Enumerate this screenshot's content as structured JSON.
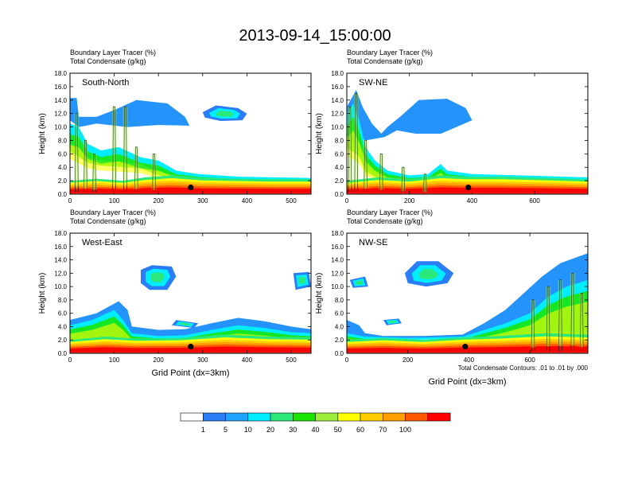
{
  "title": "2013-09-14_15:00:00",
  "chart_data": [
    {
      "type": "heatmap",
      "subtitle1": "Boundary Layer Tracer   (%)",
      "subtitle2": "Total Condensate   (g/kg)",
      "label": "South-North",
      "ylabel": "Height (km)",
      "xlabel": "",
      "xlim": [
        0,
        545
      ],
      "ylim": [
        0,
        18
      ],
      "xticks": [
        0,
        100,
        200,
        300,
        400,
        500
      ],
      "yticks": [
        "0.0",
        "2.0",
        "4.0",
        "6.0",
        "8.0",
        "10.0",
        "12.0",
        "14.0",
        "16.0",
        "18.0"
      ],
      "marker": {
        "x": 273,
        "y": 1.0
      },
      "features": {
        "pbl": [
          [
            0,
            2.0
          ],
          [
            60,
            2.3
          ],
          [
            120,
            2.0
          ],
          [
            170,
            2.5
          ],
          [
            230,
            2.8
          ],
          [
            300,
            2.4
          ],
          [
            380,
            2.3
          ],
          [
            460,
            2.2
          ],
          [
            545,
            2.2
          ]
        ],
        "anvil": [
          [
            0,
            14.3
          ],
          [
            15,
            14.3
          ],
          [
            20,
            11.5
          ],
          [
            60,
            11.5
          ],
          [
            100,
            12.5
          ],
          [
            150,
            14.0
          ],
          [
            220,
            13.5
          ],
          [
            260,
            11.5
          ],
          [
            270,
            10.2
          ],
          [
            200,
            10.3
          ],
          [
            130,
            10.0
          ],
          [
            60,
            10.5
          ],
          [
            20,
            10.0
          ],
          [
            0,
            11.0
          ]
        ],
        "thick": [
          [
            0,
            10.5
          ],
          [
            20,
            10.0
          ],
          [
            40,
            7.5
          ],
          [
            70,
            6.5
          ],
          [
            110,
            7.0
          ],
          [
            160,
            5.5
          ],
          [
            200,
            5.0
          ],
          [
            240,
            3.5
          ],
          [
            290,
            3.0
          ],
          [
            380,
            2.6
          ],
          [
            545,
            2.4
          ],
          [
            545,
            2.0
          ],
          [
            380,
            2.2
          ],
          [
            290,
            2.4
          ],
          [
            240,
            2.8
          ],
          [
            200,
            3.3
          ],
          [
            160,
            4.5
          ],
          [
            110,
            4.8
          ],
          [
            70,
            5.0
          ],
          [
            40,
            5.5
          ],
          [
            20,
            6.5
          ],
          [
            0,
            7.5
          ]
        ],
        "patches": [
          [
            [
              300,
              12.2
            ],
            [
              330,
              13.2
            ],
            [
              380,
              12.8
            ],
            [
              400,
              12.0
            ],
            [
              390,
              11.0
            ],
            [
              340,
              10.9
            ],
            [
              305,
              11.4
            ]
          ]
        ],
        "towers": [
          [
            15,
            12
          ],
          [
            35,
            8
          ],
          [
            55,
            6
          ],
          [
            100,
            13
          ],
          [
            125,
            13
          ],
          [
            150,
            7
          ],
          [
            190,
            6
          ]
        ]
      }
    },
    {
      "type": "heatmap",
      "subtitle1": "Boundary Layer Tracer   (%)",
      "subtitle2": "Total Condensate   (g/kg)",
      "label": "SW-NE",
      "ylabel": "Height (km)",
      "xlabel": "",
      "xlim": [
        0,
        770
      ],
      "ylim": [
        0,
        18
      ],
      "xticks": [
        0,
        200,
        400,
        600
      ],
      "yticks": [
        "0.0",
        "2.0",
        "4.0",
        "6.0",
        "8.0",
        "10.0",
        "12.0",
        "14.0",
        "16.0",
        "18.0"
      ],
      "marker": {
        "x": 388,
        "y": 1.0
      },
      "features": {
        "pbl": [
          [
            0,
            2.0
          ],
          [
            100,
            2.5
          ],
          [
            200,
            2.2
          ],
          [
            300,
            2.8
          ],
          [
            380,
            2.6
          ],
          [
            500,
            2.6
          ],
          [
            650,
            2.4
          ],
          [
            770,
            2.2
          ]
        ],
        "anvil": [
          [
            0,
            13.0
          ],
          [
            30,
            15.5
          ],
          [
            50,
            13.0
          ],
          [
            80,
            10.5
          ],
          [
            110,
            9.0
          ],
          [
            130,
            10.0
          ],
          [
            170,
            11.5
          ],
          [
            230,
            14.0
          ],
          [
            320,
            14.2
          ],
          [
            380,
            12.8
          ],
          [
            400,
            11.0
          ],
          [
            300,
            9.0
          ],
          [
            220,
            9.0
          ],
          [
            160,
            9.5
          ],
          [
            120,
            8.5
          ],
          [
            60,
            8.0
          ],
          [
            20,
            9.0
          ],
          [
            0,
            10.0
          ]
        ],
        "thick": [
          [
            0,
            12.0
          ],
          [
            20,
            13.5
          ],
          [
            40,
            11.0
          ],
          [
            60,
            7.0
          ],
          [
            90,
            5.0
          ],
          [
            130,
            3.5
          ],
          [
            200,
            2.8
          ],
          [
            260,
            3.0
          ],
          [
            300,
            4.5
          ],
          [
            320,
            3.5
          ],
          [
            400,
            3.0
          ],
          [
            550,
            2.8
          ],
          [
            770,
            2.5
          ],
          [
            770,
            2.0
          ],
          [
            550,
            2.2
          ],
          [
            400,
            2.4
          ],
          [
            320,
            2.6
          ],
          [
            300,
            2.8
          ],
          [
            260,
            2.4
          ],
          [
            200,
            2.3
          ],
          [
            130,
            2.5
          ],
          [
            90,
            3.0
          ],
          [
            60,
            4.0
          ],
          [
            40,
            6.5
          ],
          [
            20,
            7.5
          ],
          [
            0,
            8.0
          ]
        ],
        "patches": [],
        "towers": [
          [
            10,
            13
          ],
          [
            30,
            15
          ],
          [
            60,
            8
          ],
          [
            110,
            6
          ],
          [
            180,
            4
          ],
          [
            250,
            3
          ]
        ]
      }
    },
    {
      "type": "heatmap",
      "subtitle1": "Boundary Layer Tracer   (%)",
      "subtitle2": "Total Condensate   (g/kg)",
      "label": "West-East",
      "ylabel": "Height (km)",
      "xlabel": "Grid Point (dx=3km)",
      "xlim": [
        0,
        545
      ],
      "ylim": [
        0,
        18
      ],
      "xticks": [
        0,
        100,
        200,
        300,
        400,
        500
      ],
      "yticks": [
        "0.0",
        "2.0",
        "4.0",
        "6.0",
        "8.0",
        "10.0",
        "12.0",
        "14.0",
        "16.0",
        "18.0"
      ],
      "marker": {
        "x": 273,
        "y": 1.0
      },
      "features": {
        "pbl": [
          [
            0,
            2.0
          ],
          [
            80,
            2.5
          ],
          [
            150,
            2.2
          ],
          [
            250,
            2.3
          ],
          [
            350,
            2.8
          ],
          [
            450,
            2.5
          ],
          [
            545,
            2.4
          ]
        ],
        "anvil": [
          [
            0,
            5.0
          ],
          [
            60,
            6.0
          ],
          [
            110,
            7.8
          ],
          [
            130,
            6.5
          ],
          [
            140,
            4.0
          ],
          [
            200,
            3.5
          ],
          [
            260,
            3.6
          ],
          [
            320,
            4.5
          ],
          [
            380,
            5.3
          ],
          [
            440,
            4.8
          ],
          [
            500,
            4.0
          ],
          [
            545,
            3.6
          ],
          [
            545,
            2.6
          ],
          [
            450,
            2.8
          ],
          [
            350,
            3.0
          ],
          [
            250,
            2.6
          ],
          [
            150,
            2.5
          ],
          [
            80,
            2.8
          ],
          [
            0,
            2.4
          ]
        ],
        "thick": [
          [
            0,
            4.2
          ],
          [
            50,
            5.0
          ],
          [
            100,
            6.5
          ],
          [
            120,
            5.0
          ],
          [
            140,
            3.0
          ],
          [
            200,
            2.6
          ],
          [
            260,
            2.7
          ],
          [
            320,
            3.5
          ],
          [
            380,
            4.2
          ],
          [
            440,
            3.8
          ],
          [
            500,
            3.2
          ],
          [
            545,
            3.0
          ],
          [
            545,
            2.2
          ],
          [
            450,
            2.4
          ],
          [
            350,
            2.6
          ],
          [
            250,
            2.2
          ],
          [
            150,
            2.2
          ],
          [
            80,
            2.4
          ],
          [
            0,
            2.0
          ]
        ],
        "patches": [
          [
            [
              160,
              12.5
            ],
            [
              185,
              13.2
            ],
            [
              230,
              13.0
            ],
            [
              240,
              11.5
            ],
            [
              220,
              9.5
            ],
            [
              180,
              9.5
            ],
            [
              160,
              10.5
            ]
          ],
          [
            [
              240,
              5.0
            ],
            [
              290,
              4.5
            ],
            [
              280,
              3.8
            ],
            [
              230,
              4.2
            ]
          ],
          [
            [
              505,
              12.0
            ],
            [
              540,
              12.2
            ],
            [
              545,
              10.0
            ],
            [
              510,
              9.5
            ]
          ]
        ],
        "towers": []
      }
    },
    {
      "type": "heatmap",
      "subtitle1": "Boundary Layer Tracer   (%)",
      "subtitle2": "Total Condensate   (g/kg)",
      "label": "NW-SE",
      "ylabel": "Height (km)",
      "xlabel": "Grid Point (dx=3km)",
      "note": "Total Condensate Contours: .01 to .01 by .000",
      "xlim": [
        0,
        790
      ],
      "ylim": [
        0,
        18
      ],
      "xticks": [
        0,
        200,
        400,
        600
      ],
      "yticks": [
        "0.0",
        "2.0",
        "4.0",
        "6.0",
        "8.0",
        "10.0",
        "12.0",
        "14.0",
        "16.0",
        "18.0"
      ],
      "marker": {
        "x": 388,
        "y": 1.0
      },
      "features": {
        "pbl": [
          [
            0,
            2.0
          ],
          [
            120,
            2.3
          ],
          [
            250,
            2.0
          ],
          [
            380,
            2.4
          ],
          [
            500,
            2.6
          ],
          [
            650,
            3.0
          ],
          [
            790,
            2.8
          ]
        ],
        "anvil": [
          [
            0,
            5.0
          ],
          [
            40,
            4.2
          ],
          [
            60,
            3.0
          ],
          [
            120,
            2.6
          ],
          [
            250,
            2.6
          ],
          [
            380,
            2.8
          ],
          [
            450,
            4.5
          ],
          [
            520,
            6.5
          ],
          [
            580,
            9.0
          ],
          [
            640,
            11.5
          ],
          [
            700,
            13.5
          ],
          [
            760,
            14.5
          ],
          [
            790,
            15.0
          ],
          [
            790,
            6.0
          ],
          [
            720,
            5.0
          ],
          [
            660,
            4.0
          ],
          [
            600,
            3.6
          ],
          [
            500,
            3.0
          ],
          [
            380,
            2.4
          ],
          [
            250,
            2.2
          ],
          [
            120,
            2.2
          ],
          [
            40,
            2.4
          ],
          [
            0,
            2.6
          ]
        ],
        "thick": [
          [
            0,
            3.0
          ],
          [
            60,
            2.5
          ],
          [
            200,
            2.3
          ],
          [
            380,
            2.5
          ],
          [
            450,
            3.5
          ],
          [
            520,
            4.5
          ],
          [
            600,
            6.0
          ],
          [
            660,
            8.5
          ],
          [
            720,
            10.0
          ],
          [
            790,
            11.0
          ],
          [
            790,
            3.0
          ],
          [
            660,
            3.2
          ],
          [
            500,
            2.7
          ],
          [
            380,
            2.2
          ],
          [
            200,
            2.0
          ],
          [
            60,
            2.1
          ],
          [
            0,
            2.2
          ]
        ],
        "patches": [
          [
            [
              190,
              12.0
            ],
            [
              230,
              13.8
            ],
            [
              300,
              13.8
            ],
            [
              350,
              12.0
            ],
            [
              330,
              10.5
            ],
            [
              260,
              10.0
            ],
            [
              200,
              10.5
            ]
          ],
          [
            [
              10,
              11.0
            ],
            [
              60,
              11.5
            ],
            [
              70,
              10.0
            ],
            [
              20,
              9.8
            ]
          ],
          [
            [
              120,
              5.0
            ],
            [
              170,
              5.2
            ],
            [
              180,
              4.5
            ],
            [
              130,
              4.2
            ]
          ]
        ],
        "towers": [
          [
            610,
            8
          ],
          [
            660,
            10
          ],
          [
            700,
            11
          ],
          [
            740,
            12
          ],
          [
            770,
            9
          ]
        ]
      }
    }
  ],
  "colorbar": {
    "levels": [
      "1",
      "5",
      "10",
      "20",
      "30",
      "40",
      "50",
      "60",
      "70",
      "100"
    ],
    "colors": [
      "#ffffff",
      "#2a7df5",
      "#1fa5ff",
      "#00ecff",
      "#2ae87a",
      "#19e600",
      "#9cf03c",
      "#ffff00",
      "#ffcc00",
      "#ff9f00",
      "#ff5a00",
      "#ff0000"
    ]
  }
}
